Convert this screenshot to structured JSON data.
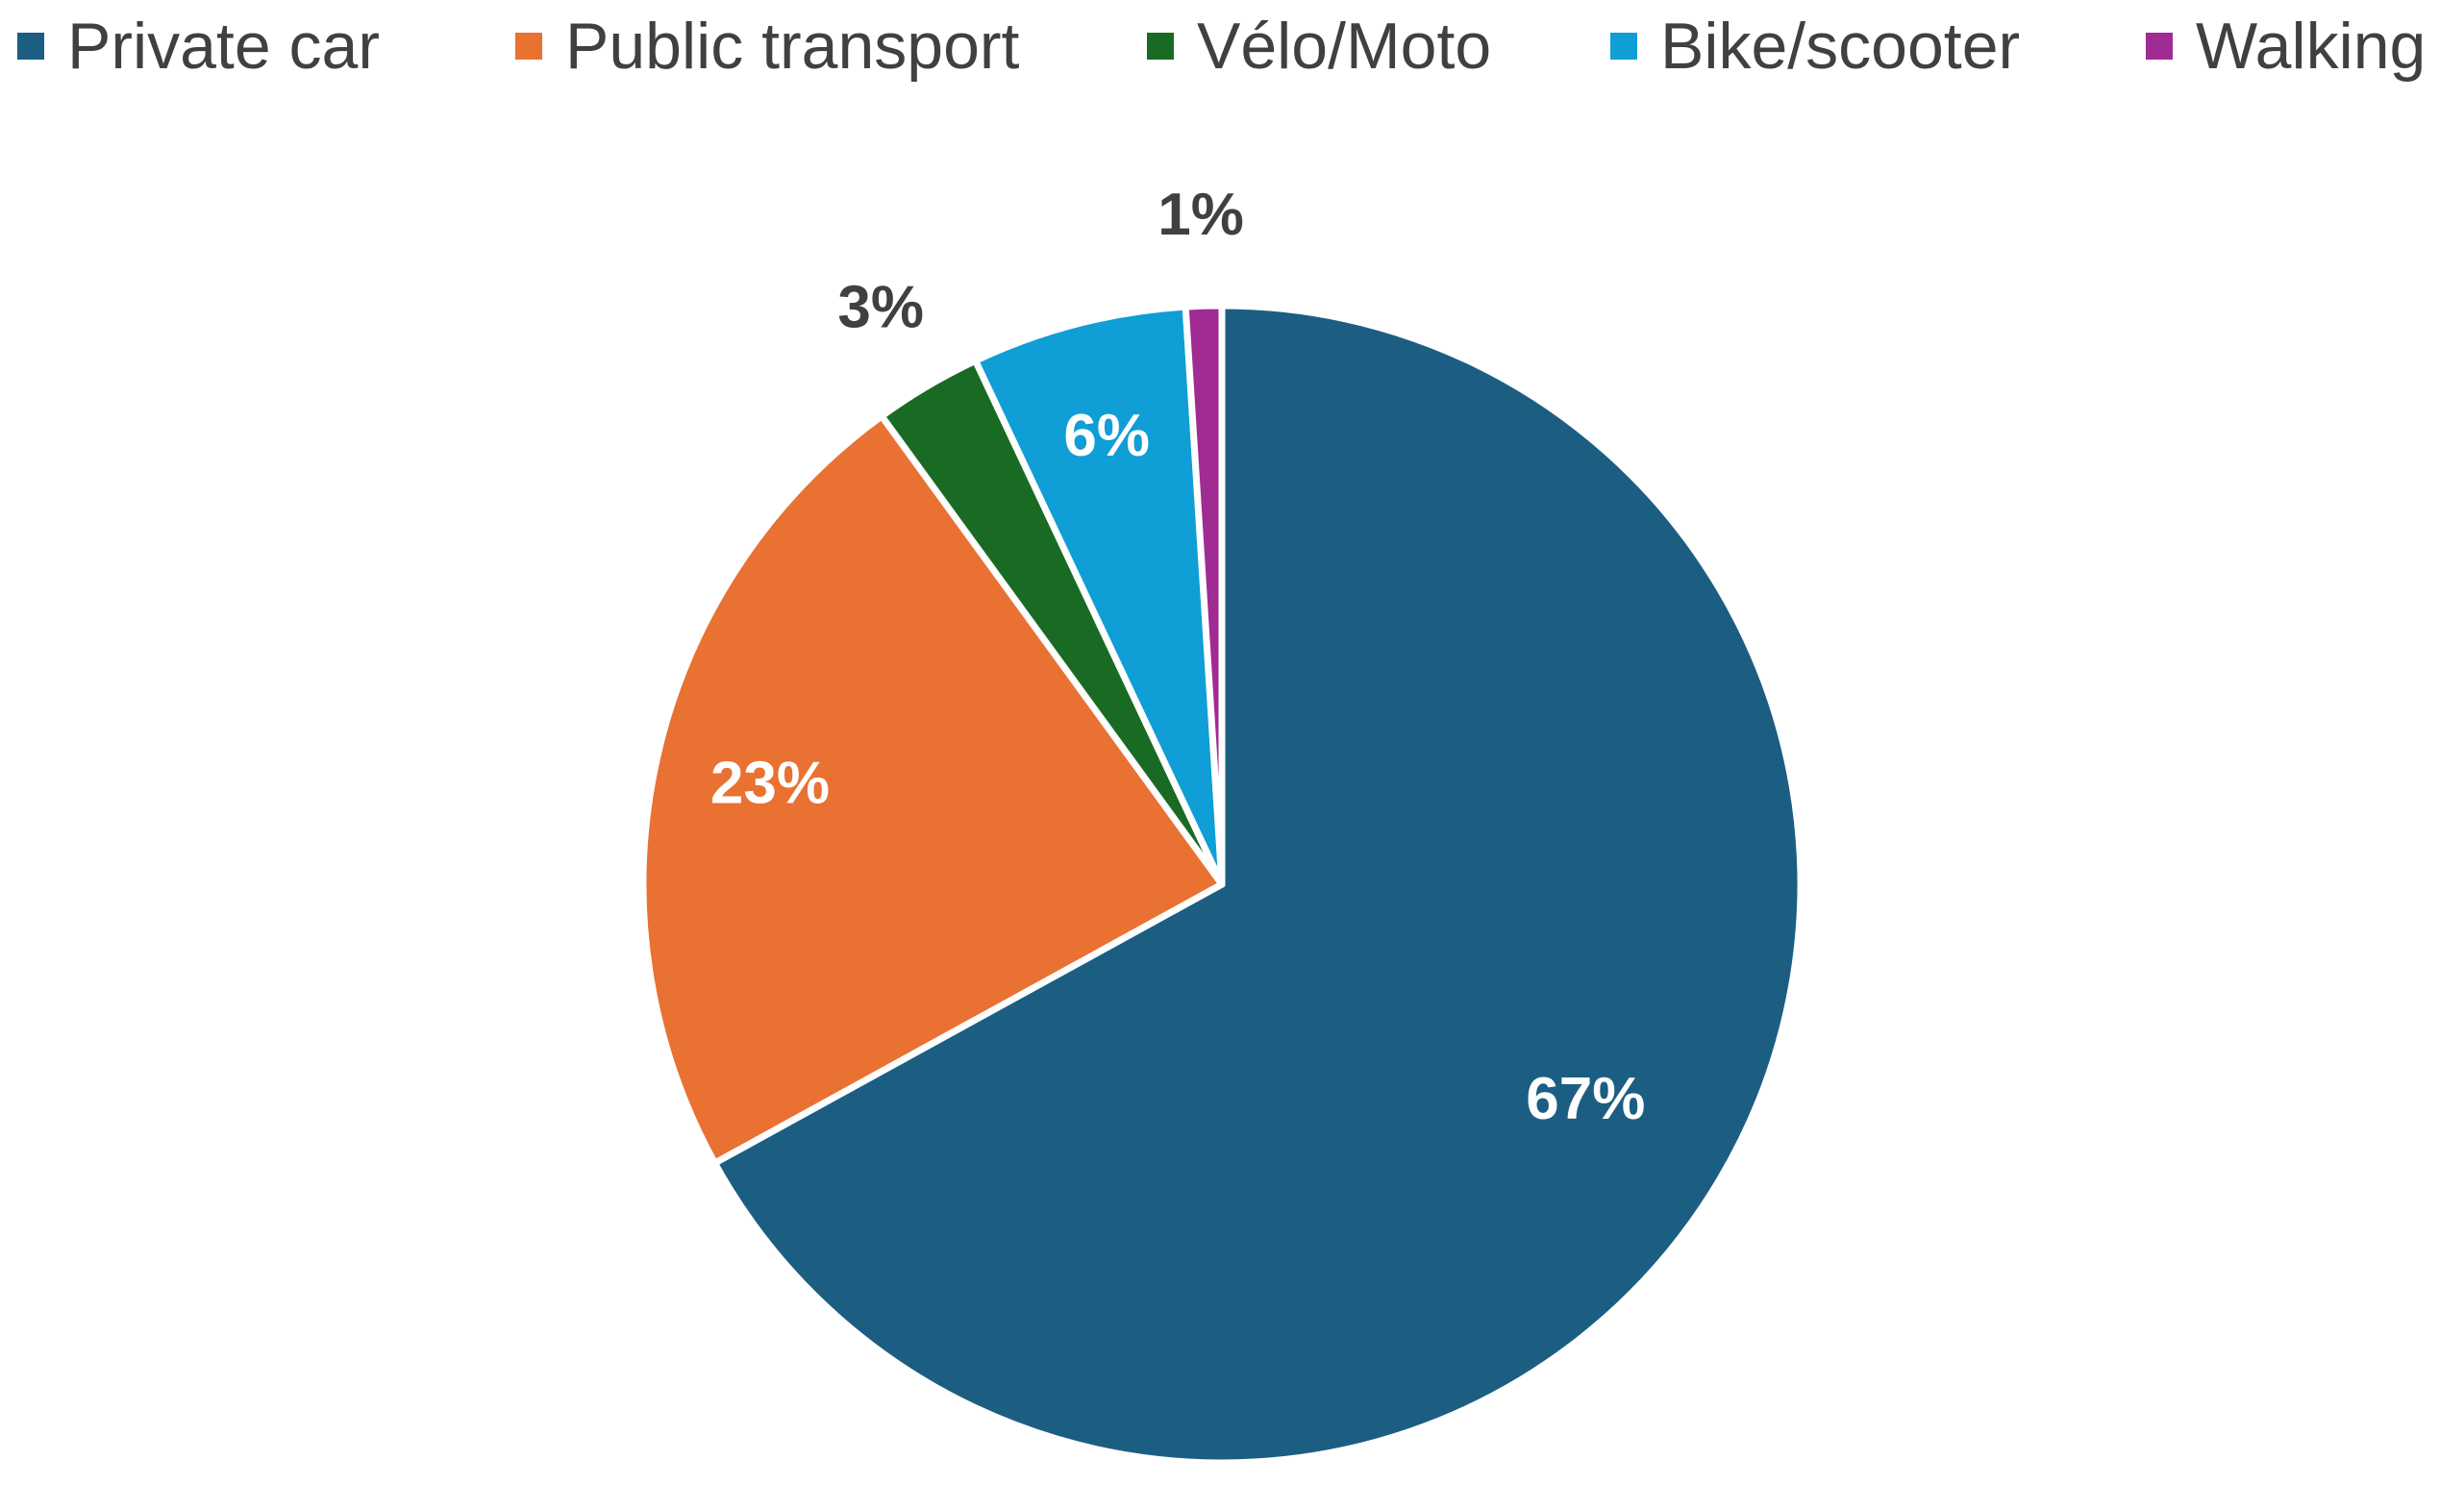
{
  "chart_data": {
    "type": "pie",
    "title": "",
    "categories": [
      "Private car",
      "Public transport",
      "Vélo/Moto",
      "Bike/scooter",
      "Walking"
    ],
    "values": [
      67,
      23,
      3,
      6,
      1
    ],
    "labels": [
      "67%",
      "23%",
      "3%",
      "6%",
      "1%"
    ],
    "colors": [
      "#1c5e82",
      "#e97132",
      "#196b24",
      "#0f9ed5",
      "#a02b93"
    ],
    "label_colors": [
      "#ffffff",
      "#ffffff",
      "#404040",
      "#ffffff",
      "#404040"
    ],
    "label_placement": [
      "inside",
      "inside",
      "outside",
      "inside",
      "outside"
    ],
    "start_angle": "12 o'clock",
    "direction": "clockwise",
    "legend": {
      "position": "top"
    }
  }
}
